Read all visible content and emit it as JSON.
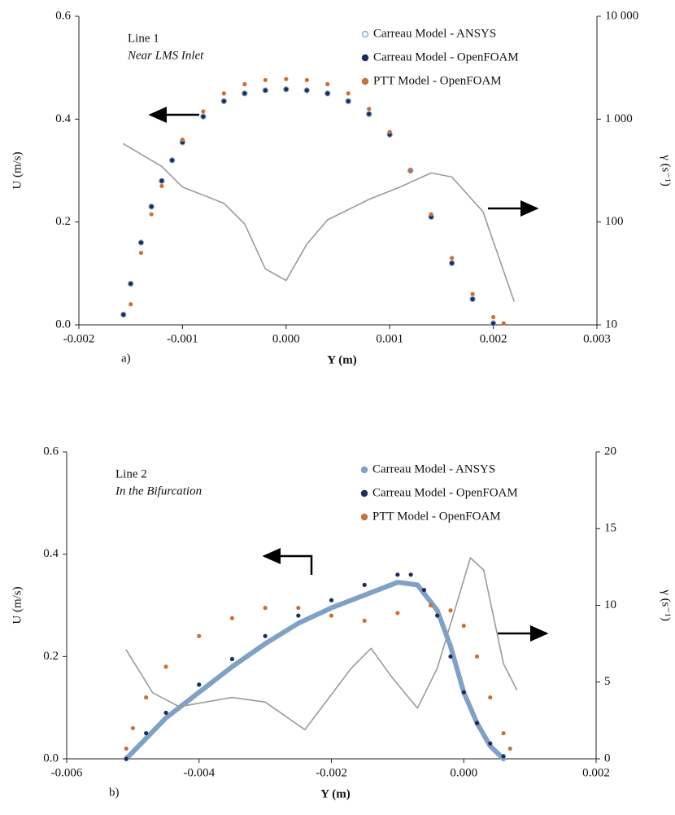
{
  "chart_data": [
    {
      "type": "line",
      "panel_label": "a)",
      "annotations": [
        "Line 1",
        "Near LMS Inlet"
      ],
      "xlabel": "Y (m)",
      "ylabel": "U (m/s)",
      "y2label": "γ (s⁻¹)",
      "xlim": [
        -0.002,
        0.003
      ],
      "xticks": [
        -0.002,
        -0.001,
        {
          "value": 0,
          "label": "0.000"
        },
        0.001,
        0.002,
        0.003
      ],
      "ylim": [
        0,
        0.6
      ],
      "yticks": [
        {
          "value": 0,
          "label": "0.0"
        },
        0.2,
        0.4,
        0.6
      ],
      "y2lim": [
        10,
        10000
      ],
      "y2ticks": [
        10,
        100,
        {
          "value": 1000,
          "label": "1 000"
        },
        {
          "value": 10000,
          "label": "10 000"
        }
      ],
      "y2log": true,
      "legend": "upper right",
      "series": [
        {
          "name": "Carreau Model - ANSYS",
          "color": "#8eabc9",
          "mode": "hollow",
          "x": [
            -0.00157,
            -0.0015,
            -0.0014,
            -0.0013,
            -0.0012,
            -0.0011,
            -0.001,
            -0.0008,
            -0.0006,
            -0.0004,
            -0.0002,
            0,
            0.0002,
            0.0004,
            0.0006,
            0.0008,
            0.001,
            0.0012,
            0.0014,
            0.0016,
            0.0018,
            0.002
          ],
          "values": [
            0.02,
            0.08,
            0.16,
            0.23,
            0.28,
            0.32,
            0.355,
            0.405,
            0.435,
            0.45,
            0.456,
            0.458,
            0.456,
            0.45,
            0.435,
            0.41,
            0.37,
            0.3,
            0.21,
            0.12,
            0.05,
            0.003
          ]
        },
        {
          "name": "Carreau Model - OpenFOAM",
          "color": "#1c2c5c",
          "mode": "dot",
          "x": [
            -0.00157,
            -0.0015,
            -0.0014,
            -0.0013,
            -0.0012,
            -0.0011,
            -0.001,
            -0.0008,
            -0.0006,
            -0.0004,
            -0.0002,
            0,
            0.0002,
            0.0004,
            0.0006,
            0.0008,
            0.001,
            0.0012,
            0.0014,
            0.0016,
            0.0018,
            0.002
          ],
          "values": [
            0.02,
            0.08,
            0.16,
            0.23,
            0.28,
            0.32,
            0.355,
            0.405,
            0.435,
            0.45,
            0.456,
            0.458,
            0.456,
            0.45,
            0.435,
            0.41,
            0.37,
            0.3,
            0.21,
            0.12,
            0.05,
            0.003
          ]
        },
        {
          "name": "PTT Model - OpenFOAM",
          "color": "#c6723a",
          "mode": "dot",
          "x": [
            -0.0015,
            -0.0014,
            -0.0013,
            -0.0012,
            -0.001,
            -0.0008,
            -0.0006,
            -0.0004,
            -0.0002,
            0,
            0.0002,
            0.0004,
            0.0006,
            0.0008,
            0.001,
            0.0012,
            0.0014,
            0.0016,
            0.0018,
            0.002,
            0.0021
          ],
          "values": [
            0.04,
            0.14,
            0.215,
            0.27,
            0.36,
            0.415,
            0.45,
            0.468,
            0.476,
            0.478,
            0.476,
            0.468,
            0.45,
            0.42,
            0.375,
            0.3,
            0.215,
            0.13,
            0.06,
            0.015,
            0.003
          ]
        },
        {
          "color": "#9a9a9a",
          "mode": "line",
          "axis": "y2",
          "x": [
            -0.00157,
            -0.0012,
            -0.001,
            -0.0006,
            -0.0004,
            -0.0002,
            0,
            0.0002,
            0.0004,
            0.0008,
            0.0011,
            0.0014,
            0.0016,
            0.0019,
            0.0022
          ],
          "values": [
            575,
            347,
            219,
            152,
            96,
            35,
            27,
            61,
            105,
            166,
            219,
            300,
            274,
            126,
            17
          ]
        }
      ]
    },
    {
      "type": "line",
      "panel_label": "b)",
      "annotations": [
        "Line 2",
        "In the Bifurcation"
      ],
      "xlabel": "Y (m)",
      "ylabel": "U (m/s)",
      "y2label": "γ (s⁻¹)",
      "xlim": [
        -0.006,
        0.002
      ],
      "xticks": [
        -0.006,
        -0.004,
        -0.002,
        {
          "value": 0,
          "label": "0.000"
        },
        0.002
      ],
      "ylim": [
        0,
        0.6
      ],
      "yticks": [
        {
          "value": 0,
          "label": "0.0"
        },
        0.2,
        0.4,
        0.6
      ],
      "y2lim": [
        0,
        20
      ],
      "y2ticks": [
        0,
        5,
        10,
        15,
        20
      ],
      "y2log": false,
      "legend": "upper right",
      "series": [
        {
          "name": "Carreau Model - ANSYS",
          "color": "#7fa1c6",
          "mode": "thick",
          "x": [
            -0.0051,
            -0.0048,
            -0.0045,
            -0.004,
            -0.0035,
            -0.003,
            -0.0025,
            -0.002,
            -0.0015,
            -0.001,
            -0.0007,
            -0.0004,
            -0.0002,
            0,
            0.0002,
            0.0004,
            0.0006
          ],
          "values": [
            0,
            0.04,
            0.08,
            0.13,
            0.18,
            0.225,
            0.265,
            0.295,
            0.32,
            0.345,
            0.34,
            0.29,
            0.22,
            0.13,
            0.07,
            0.025,
            0
          ]
        },
        {
          "name": "Carreau Model - OpenFOAM",
          "color": "#1c2c5c",
          "mode": "dot",
          "x": [
            -0.0051,
            -0.0048,
            -0.0045,
            -0.004,
            -0.0035,
            -0.003,
            -0.0025,
            -0.002,
            -0.0015,
            -0.001,
            -0.0008,
            -0.0006,
            -0.0004,
            -0.0002,
            0,
            0.0002,
            0.0004,
            0.0006
          ],
          "values": [
            0,
            0.05,
            0.09,
            0.145,
            0.195,
            0.24,
            0.28,
            0.31,
            0.34,
            0.36,
            0.36,
            0.33,
            0.28,
            0.2,
            0.13,
            0.07,
            0.03,
            0.005
          ]
        },
        {
          "name": "PTT Model - OpenFOAM",
          "color": "#c6723a",
          "mode": "dot",
          "x": [
            -0.0051,
            -0.005,
            -0.0048,
            -0.0045,
            -0.004,
            -0.0035,
            -0.003,
            -0.0025,
            -0.002,
            -0.0015,
            -0.001,
            -0.0005,
            -0.0002,
            0,
            0.0002,
            0.0004,
            0.0006,
            0.0007
          ],
          "values": [
            0.02,
            0.06,
            0.12,
            0.18,
            0.24,
            0.275,
            0.295,
            0.295,
            0.28,
            0.27,
            0.285,
            0.3,
            0.29,
            0.26,
            0.2,
            0.12,
            0.05,
            0.02
          ]
        },
        {
          "color": "#9a9a9a",
          "mode": "line",
          "axis": "y2",
          "x": [
            -0.0051,
            -0.0047,
            -0.0043,
            -0.0035,
            -0.003,
            -0.0024,
            -0.0017,
            -0.0014,
            -0.0011,
            -0.0007,
            -0.0004,
            -0.0001,
            0.0001,
            0.0003,
            0.0006,
            0.0008
          ],
          "values": [
            7.1,
            4.3,
            3.4,
            4.0,
            3.7,
            1.9,
            5.9,
            7.2,
            5.4,
            3.3,
            5.9,
            10.2,
            13.1,
            12.3,
            6.2,
            4.5
          ]
        }
      ]
    }
  ]
}
